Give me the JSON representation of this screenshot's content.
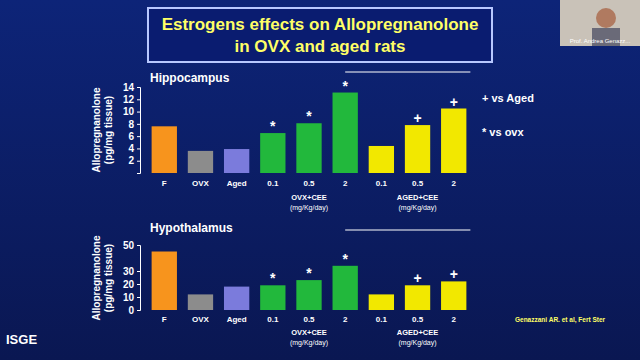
{
  "slide": {
    "title": [
      "Estrogens effects on Allopregnanolone",
      "in OVX and aged rats"
    ],
    "speaker": "Prof. Andrea Genazz...",
    "logo": "ISGE",
    "citation": "Genazzani AR. et al, Fert Ster"
  },
  "chart_data": [
    {
      "type": "bar",
      "title": "Hippocampus",
      "y_label": [
        "Allopregnanolone",
        "(pg/mg tissue)"
      ],
      "categories": [
        "F",
        "OVX",
        "Aged",
        "0.1",
        "0.5",
        "2",
        "0.1",
        "0.5",
        "2"
      ],
      "values": [
        7.6,
        3.6,
        3.9,
        6.5,
        8.1,
        13.1,
        4.4,
        7.8,
        10.5
      ],
      "colors": [
        "#f7941d",
        "#8c8c8c",
        "#7b7bdc",
        "#22b83c",
        "#22b83c",
        "#22b83c",
        "#f2e800",
        "#f2e800",
        "#f2e800"
      ],
      "ylim": [
        0,
        14
      ],
      "yticks": [
        2,
        4,
        6,
        8,
        10,
        12,
        14
      ],
      "groups": [
        {
          "label": "OVX+CEE",
          "unit": "(mg/Kg/day)",
          "members": [
            3,
            4,
            5
          ]
        },
        {
          "label": "AGED+CEE",
          "unit": "(mg/Kg/day)",
          "members": [
            6,
            7,
            8
          ]
        }
      ],
      "significance": [
        null,
        null,
        null,
        "*",
        "*",
        "*",
        null,
        "+",
        "+"
      ],
      "annotations": [
        "+ vs Aged",
        "* vs ovx"
      ]
    },
    {
      "type": "bar",
      "title": "Hypothalamus",
      "y_label": [
        "Allopregnanolone",
        "(pg/mg tissue)"
      ],
      "categories": [
        "F",
        "OVX",
        "Aged",
        "0.1",
        "0.5",
        "2",
        "0.1",
        "0.5",
        "2"
      ],
      "values": [
        45,
        12,
        18,
        19,
        23,
        34,
        12,
        19,
        22
      ],
      "colors": [
        "#f7941d",
        "#8c8c8c",
        "#7b7bdc",
        "#22b83c",
        "#22b83c",
        "#22b83c",
        "#f2e800",
        "#f2e800",
        "#f2e800"
      ],
      "ylim": [
        0,
        50
      ],
      "yticks": [
        0,
        10,
        20,
        30,
        50
      ],
      "groups": [
        {
          "label": "OVX+CEE",
          "unit": "(mg/Kg/day)",
          "members": [
            3,
            4,
            5
          ]
        },
        {
          "label": "AGED+CEE",
          "unit": "(mg/Kg/day)",
          "members": [
            6,
            7,
            8
          ]
        }
      ],
      "significance": [
        null,
        null,
        null,
        "*",
        "*",
        "*",
        null,
        "+",
        "+"
      ]
    }
  ]
}
